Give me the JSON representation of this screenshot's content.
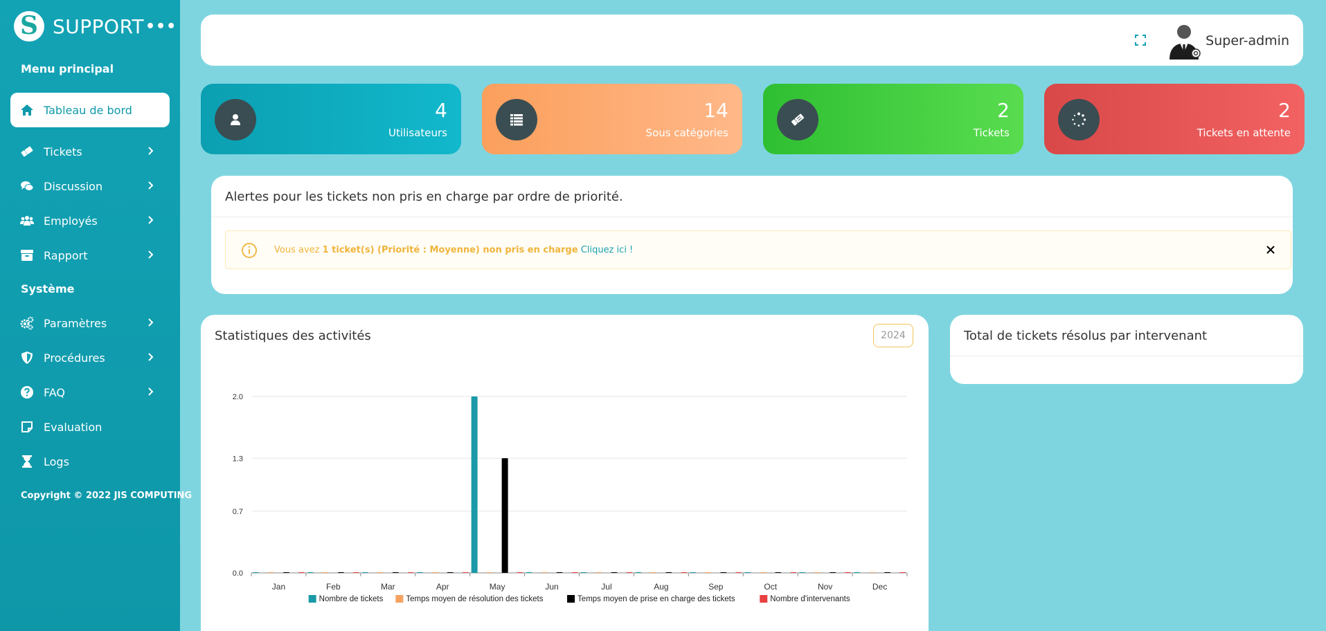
{
  "brand": {
    "name": "SUPPORT",
    "logo_letter": "S",
    "more": "•••"
  },
  "sidebar": {
    "section_main": "Menu principal",
    "section_system": "Système",
    "items": [
      {
        "label": "Tableau de bord",
        "icon": "home-icon",
        "active": true
      },
      {
        "label": "Tickets",
        "icon": "ticket-icon"
      },
      {
        "label": "Discussion",
        "icon": "comments-icon"
      },
      {
        "label": "Employés",
        "icon": "users-icon"
      },
      {
        "label": "Rapport",
        "icon": "archive-icon"
      },
      {
        "label": "Paramètres",
        "icon": "gears-icon"
      },
      {
        "label": "Procédures",
        "icon": "shield-icon"
      },
      {
        "label": "FAQ",
        "icon": "question-icon"
      },
      {
        "label": "Evaluation",
        "icon": "note-icon"
      },
      {
        "label": "Logs",
        "icon": "hourglass-icon"
      }
    ],
    "copyright": "Copyright © 2022 JIS COMPUTING"
  },
  "topbar": {
    "username": "Super-admin"
  },
  "stats": [
    {
      "value": "4",
      "label": "Utilisateurs",
      "color_from": "#0b9fb1",
      "color_to": "#12b8cc",
      "icon": "user-icon"
    },
    {
      "value": "14",
      "label": "Sous catégories",
      "color_from": "#fb9f5c",
      "color_to": "#ffb889",
      "icon": "list-icon"
    },
    {
      "value": "2",
      "label": "Tickets",
      "color_from": "#2fbf32",
      "color_to": "#59dc4f",
      "icon": "ticket-icon"
    },
    {
      "value": "2",
      "label": "Tickets en attente",
      "color_from": "#d94848",
      "color_to": "#f36262",
      "icon": "spinner-icon"
    }
  ],
  "alerts": {
    "title": "Alertes pour les tickets non pris en charge par ordre de priorité.",
    "prefix": "Vous avez ",
    "bold": "1 ticket(s) (Priorité : Moyenne) non pris en charge",
    "link": "Cliquez ici !"
  },
  "activity": {
    "title": "Statistiques des activités",
    "year": "2024"
  },
  "resolved": {
    "title": "Total de tickets résolus par intervenant"
  },
  "chart_data": {
    "type": "bar",
    "title": "",
    "categories": [
      "Jan",
      "Feb",
      "Mar",
      "Apr",
      "May",
      "Jun",
      "Jul",
      "Aug",
      "Sep",
      "Oct",
      "Nov",
      "Dec"
    ],
    "ylim": [
      0,
      2
    ],
    "yticks": [
      "0.0",
      "0.7",
      "1.3",
      "2.0"
    ],
    "grid": true,
    "legend_position": "bottom",
    "series": [
      {
        "name": "Nombre de tickets",
        "color": "#1a9aa8",
        "values": [
          0,
          0,
          0,
          0,
          2,
          0,
          0,
          0,
          0,
          0,
          0,
          0
        ]
      },
      {
        "name": "Temps moyen de résolution des tickets",
        "color": "#f4a261",
        "values": [
          0,
          0,
          0,
          0,
          0,
          0,
          0,
          0,
          0,
          0,
          0,
          0
        ]
      },
      {
        "name": "Temps moyen de prise en charge des tickets",
        "color": "#000000",
        "values": [
          0,
          0,
          0,
          0,
          1.3,
          0,
          0,
          0,
          0,
          0,
          0,
          0
        ]
      },
      {
        "name": "Nombre d'intervenants",
        "color": "#e84040",
        "values": [
          0,
          0,
          0,
          0,
          0,
          0,
          0,
          0,
          0,
          0,
          0,
          0
        ]
      }
    ]
  }
}
